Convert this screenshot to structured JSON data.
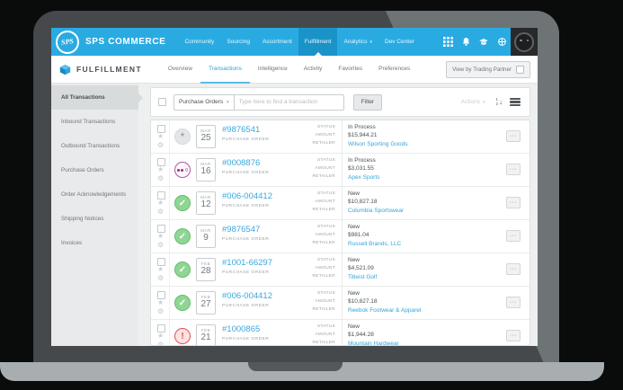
{
  "brand": {
    "logo_text": "SPS",
    "name": "SPS COMMERCE"
  },
  "top_nav": {
    "items": [
      {
        "label": "Community",
        "active": false,
        "caret": false
      },
      {
        "label": "Sourcing",
        "active": false,
        "caret": false
      },
      {
        "label": "Assortment",
        "active": false,
        "caret": false
      },
      {
        "label": "Fulfillment",
        "active": true,
        "caret": false
      },
      {
        "label": "Analytics",
        "active": false,
        "caret": true
      },
      {
        "label": "Dev Center",
        "active": false,
        "caret": false
      }
    ]
  },
  "app_bar": {
    "app_name": "FULFILLMENT",
    "tabs": [
      {
        "label": "Overview",
        "active": false
      },
      {
        "label": "Transactions",
        "active": true
      },
      {
        "label": "Intelligence",
        "active": false
      },
      {
        "label": "Activity",
        "active": false
      },
      {
        "label": "Favorites",
        "active": false
      },
      {
        "label": "Preferences",
        "active": false
      }
    ],
    "view_by_label": "View by Trading Partner"
  },
  "sidebar": {
    "items": [
      {
        "label": "All Transactions",
        "active": true
      },
      {
        "label": "Inbound Transactions",
        "active": false
      },
      {
        "label": "Outbound Transactions",
        "active": false
      },
      {
        "label": "Purchase Orders",
        "active": false
      },
      {
        "label": "Order Acknowledgements",
        "active": false
      },
      {
        "label": "Shipping Notices",
        "active": false
      },
      {
        "label": "Invoices",
        "active": false
      }
    ]
  },
  "toolbar": {
    "type_filter_value": "Purchase Orders",
    "search_placeholder": "Type here to find a transaction",
    "filter_label": "Filter",
    "actions_label": "Actions"
  },
  "list": {
    "doc_type_label": "PURCHASE ORDER",
    "field_labels": {
      "status": "STATUS",
      "amount": "AMOUNT",
      "retailer": "RETAILER"
    },
    "rows": [
      {
        "icon": "asterisk",
        "month": "MAR",
        "day": "25",
        "id": "#9876541",
        "status": "In Process",
        "amount": "$15,944.21",
        "retailer": "Wilson Sporting Goods"
      },
      {
        "icon": "dots",
        "month": "MAR",
        "day": "16",
        "id": "#0008876",
        "status": "In Process",
        "amount": "$3,031.55",
        "retailer": "Apex Sports"
      },
      {
        "icon": "check",
        "month": "MAR",
        "day": "12",
        "id": "#006-004412",
        "status": "New",
        "amount": "$10,827.18",
        "retailer": "Columbia Sportswear"
      },
      {
        "icon": "check",
        "month": "MAR",
        "day": "9",
        "id": "#9876547",
        "status": "New",
        "amount": "$981.04",
        "retailer": "Russell Brands, LLC"
      },
      {
        "icon": "check",
        "month": "FEB",
        "day": "28",
        "id": "#1001-66297",
        "status": "New",
        "amount": "$4,521.09",
        "retailer": "Titleist Golf"
      },
      {
        "icon": "check",
        "month": "FEB",
        "day": "27",
        "id": "#006-004412",
        "status": "New",
        "amount": "$10,827.18",
        "retailer": "Reebok Footwear & Apparel"
      },
      {
        "icon": "exclaim",
        "month": "FEB",
        "day": "21",
        "id": "#1000865",
        "status": "New",
        "amount": "$1,944.28",
        "retailer": "Mountain Hardwear"
      }
    ]
  },
  "icons": {
    "caret_down": "▾",
    "star": "★",
    "gear": "⚙",
    "check": "✓",
    "asterisk": "*",
    "exclaim": "!",
    "ellipsis": "···",
    "sort_arrow": "↓",
    "sort_num_1": "1",
    "sort_num_2": "2"
  },
  "colors": {
    "brand_blue": "#29abe2",
    "nav_active_blue": "#1a93c8",
    "link_blue": "#36a5d9",
    "status_green": "#67bd6c",
    "status_red": "#e05252",
    "status_purple": "#b1569f"
  }
}
